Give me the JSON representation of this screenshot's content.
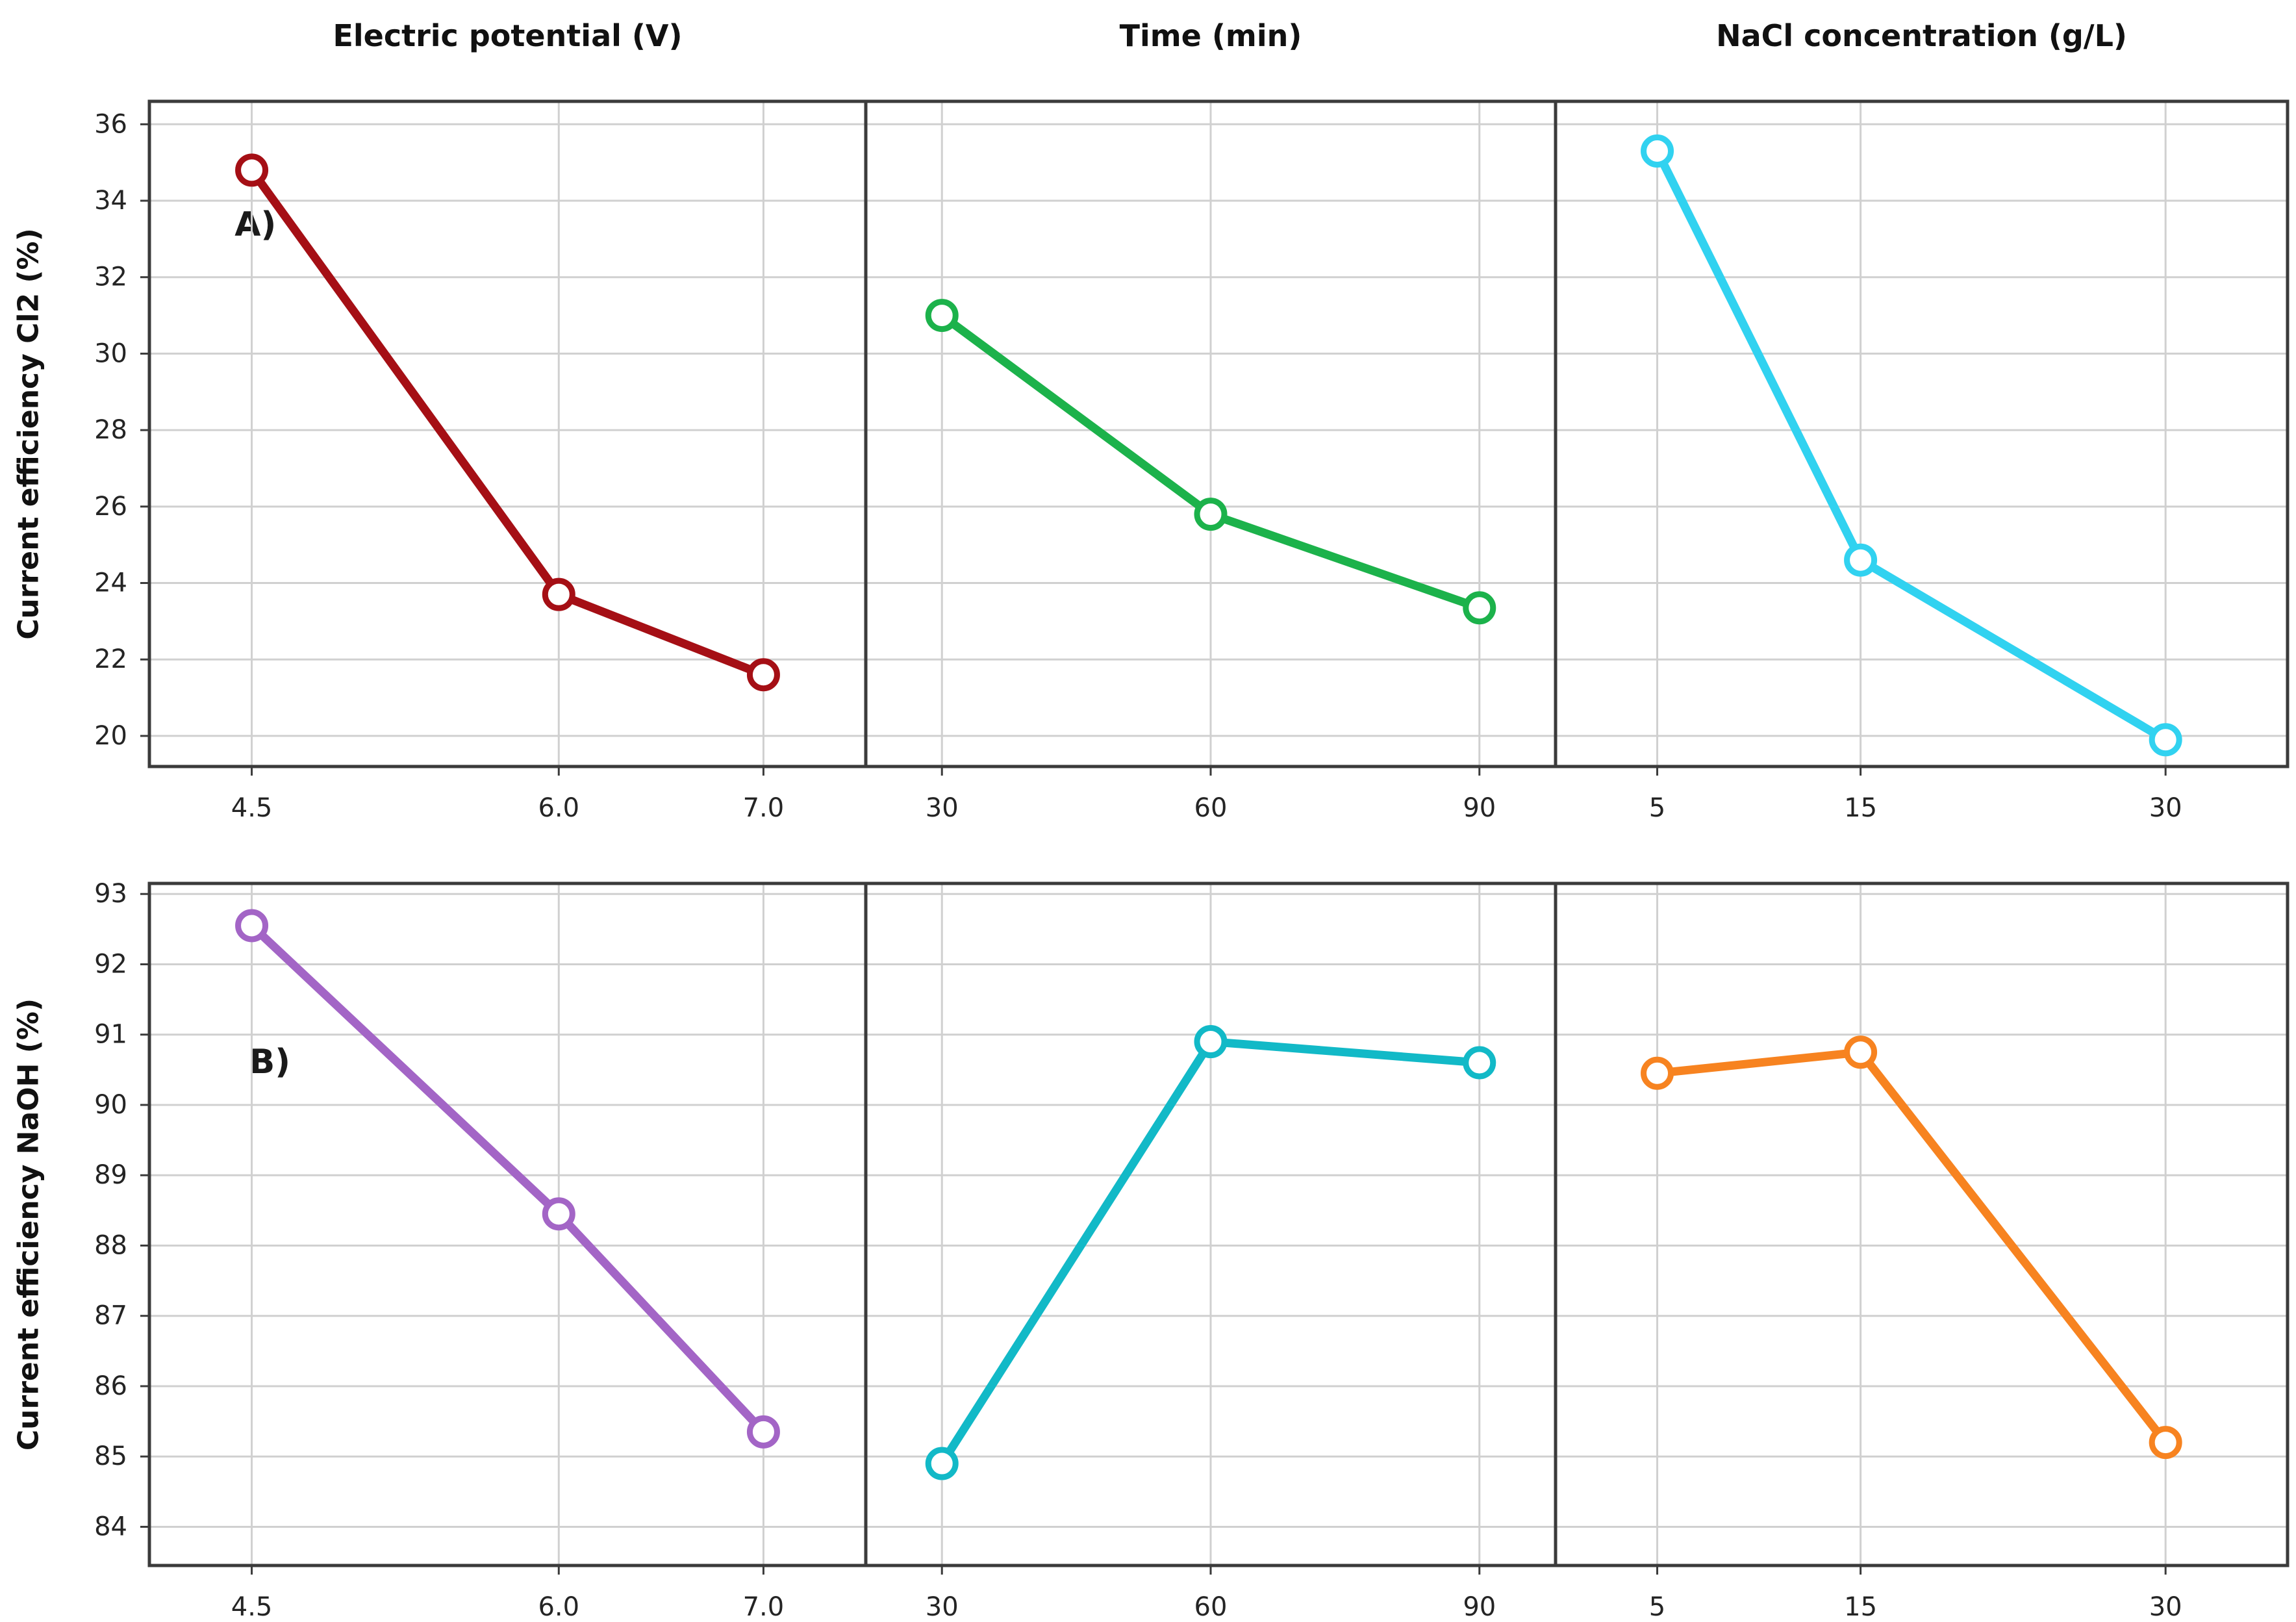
{
  "figure": {
    "background": "#ffffff",
    "grid_color": "#d0d0d0",
    "spine_color": "#3b3b3b",
    "tick_label_color": "#242424"
  },
  "chart_data": {
    "type": "line",
    "title": "",
    "layout": "2 rows x 3 columns of adjoined panels; shared y-axis per row, grid on, open-circle markers",
    "columns": [
      {
        "title": "Electric potential (V)",
        "x_tick_labels": [
          "4.5",
          "6.0",
          "7.0"
        ],
        "x_tick_values": [
          4.5,
          6.0,
          7.0
        ],
        "xlim": [
          4.0,
          7.5
        ]
      },
      {
        "title": "Time (min)",
        "x_tick_labels": [
          "30",
          "60",
          "90"
        ],
        "x_tick_values": [
          30,
          60,
          90
        ],
        "xlim": [
          21.5,
          98.5
        ]
      },
      {
        "title": "NaCl concentration (g/L)",
        "x_tick_labels": [
          "5",
          "15",
          "30"
        ],
        "x_tick_values": [
          5,
          15,
          30
        ],
        "xlim": [
          0,
          36
        ]
      }
    ],
    "rows": [
      {
        "panel_label": "A)",
        "ylabel": "Current efficiency Cl2 (%)",
        "ylim": [
          19.2,
          36.6
        ],
        "y_ticks": [
          20,
          22,
          24,
          26,
          28,
          30,
          32,
          34,
          36
        ]
      },
      {
        "panel_label": "B)",
        "ylabel": "Current efficiency NaOH (%)",
        "ylim": [
          83.45,
          93.15
        ],
        "y_ticks": [
          84,
          85,
          86,
          87,
          88,
          89,
          90,
          91,
          92,
          93
        ]
      }
    ],
    "series": [
      {
        "name": "Cl2 vs electric potential",
        "row": 0,
        "col": 0,
        "color": "#a50f15",
        "x": [
          4.5,
          6.0,
          7.0
        ],
        "y": [
          34.8,
          23.7,
          21.6
        ]
      },
      {
        "name": "Cl2 vs time",
        "row": 0,
        "col": 1,
        "color": "#1cb24b",
        "x": [
          30,
          60,
          90
        ],
        "y": [
          31.0,
          25.8,
          23.35
        ]
      },
      {
        "name": "Cl2 vs NaCl concentration",
        "row": 0,
        "col": 2,
        "color": "#31d2f0",
        "x": [
          5,
          15,
          30
        ],
        "y": [
          35.3,
          24.6,
          19.9
        ]
      },
      {
        "name": "NaOH vs electric potential",
        "row": 1,
        "col": 0,
        "color": "#a365c6",
        "x": [
          4.5,
          6.0,
          7.0
        ],
        "y": [
          92.55,
          88.45,
          85.35
        ]
      },
      {
        "name": "NaOH vs time",
        "row": 1,
        "col": 1,
        "color": "#12b9c7",
        "x": [
          30,
          60,
          90
        ],
        "y": [
          84.9,
          90.9,
          90.6
        ]
      },
      {
        "name": "NaOH vs NaCl concentration",
        "row": 1,
        "col": 2,
        "color": "#f78320",
        "x": [
          5,
          15,
          30
        ],
        "y": [
          90.45,
          90.75,
          85.2
        ]
      }
    ],
    "grid": true,
    "marker": "open-circle",
    "legend": null
  }
}
